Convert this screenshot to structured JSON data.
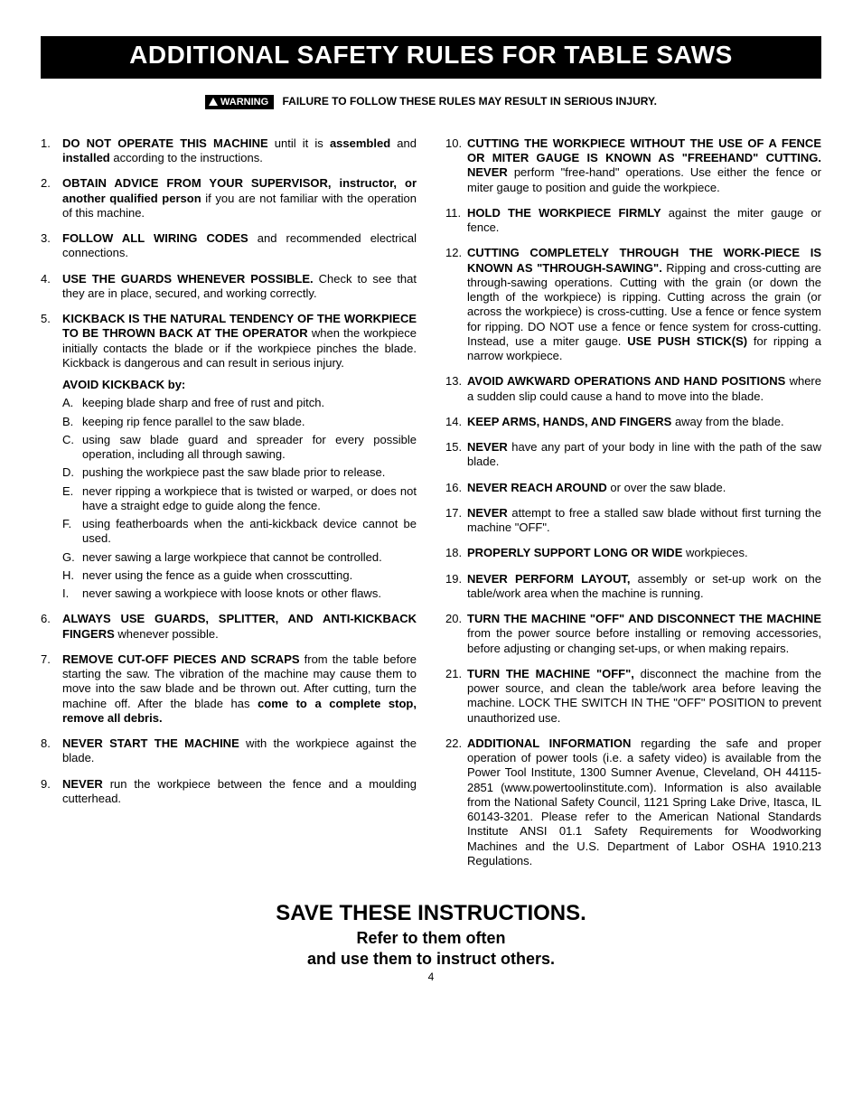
{
  "title": "ADDITIONAL SAFETY RULES FOR TABLE SAWS",
  "warning_label": "WARNING",
  "warning_text": "FAILURE TO FOLLOW THESE RULES MAY RESULT IN SERIOUS INJURY.",
  "left_rules": [
    {
      "bold": "DO NOT OPERATE THIS MACHINE",
      "rest": " until it is ",
      "bold2": "assembled",
      "rest2": " and ",
      "bold3": "installed",
      "rest3": " according to the instructions."
    },
    {
      "bold": "OBTAIN ADVICE FROM YOUR SUPERVISOR, instructor, or another qualified person",
      "rest": " if you are not familiar with the operation of this machine."
    },
    {
      "bold": "FOLLOW ALL WIRING CODES",
      "rest": " and recommended electrical connections."
    },
    {
      "bold": "USE THE GUARDS WHENEVER POSSIBLE.",
      "rest": " Check to see that they are in place, secured, and working correctly."
    },
    {
      "bold": "KICKBACK IS THE NATURAL TENDENCY OF THE WORKPIECE TO BE THROWN BACK AT THE OPERATOR",
      "rest": " when the workpiece initially contacts the blade or if the workpiece pinches the blade. Kickback is dangerous and can result in serious injury."
    },
    {
      "bold": "ALWAYS USE GUARDS, SPLITTER, AND ANTI-KICKBACK FINGERS",
      "rest": " whenever possible."
    },
    {
      "bold": "REMOVE CUT-OFF PIECES AND SCRAPS",
      "rest": " from the table before starting the saw. The vibration of the machine may cause them to move into the saw blade and be thrown out. After cutting, turn the machine off. After the blade has ",
      "bold2": "come to a complete stop, remove all debris."
    },
    {
      "bold": "NEVER START THE MACHINE",
      "rest": " with the workpiece against the blade."
    },
    {
      "bold": "NEVER",
      "rest": " run the workpiece between the fence and a moulding cutterhead."
    }
  ],
  "avoid_heading": "AVOID KICKBACK by:",
  "avoid_items": [
    "keeping blade sharp and free of rust and pitch.",
    "keeping rip fence parallel to the saw blade.",
    "using saw blade guard and spreader for every possible operation, including all through sawing.",
    "pushing the workpiece past the saw blade prior to release.",
    "never ripping a workpiece that is twisted or warped, or does not have a straight edge to guide along the fence.",
    "using featherboards when the anti-kickback device cannot be used.",
    "never sawing a large workpiece that cannot be controlled.",
    "never using the fence as a guide when crosscutting.",
    "never sawing a workpiece with loose knots or other flaws."
  ],
  "right_rules": [
    {
      "bold": "CUTTING THE WORKPIECE WITHOUT THE USE OF A FENCE OR MITER GAUGE IS KNOWN AS \"FREEHAND\" CUTTING. NEVER",
      "rest": " perform \"free-hand\" operations. Use either the fence or miter gauge to position and guide the workpiece."
    },
    {
      "bold": "HOLD THE WORKPIECE FIRMLY",
      "rest": " against the miter gauge or fence."
    },
    {
      "bold": "CUTTING COMPLETELY THROUGH THE WORK-PIECE IS KNOWN AS \"THROUGH-SAWING\".",
      "rest": " Ripping and cross-cutting are through-sawing operations. Cutting with the grain (or down the length of the workpiece) is ripping. Cutting across the grain (or across the workpiece) is cross-cutting. Use a fence or fence system for ripping. DO NOT use a fence or fence system for cross-cutting. Instead, use a miter gauge. ",
      "bold2": "USE PUSH STICK(S)",
      "rest2": " for ripping a narrow workpiece."
    },
    {
      "bold": "AVOID AWKWARD OPERATIONS AND HAND POSITIONS",
      "rest": " where a sudden slip could cause a hand to move into the blade."
    },
    {
      "bold": "KEEP ARMS, HANDS, AND FINGERS",
      "rest": " away from the blade."
    },
    {
      "bold": "NEVER",
      "rest": " have any part of your body in line with the path of the saw blade."
    },
    {
      "bold": "NEVER REACH AROUND",
      "rest": " or over the saw blade."
    },
    {
      "bold": "NEVER",
      "rest": " attempt to free a stalled saw blade without first turning the machine \"OFF\"."
    },
    {
      "bold": "PROPERLY SUPPORT LONG OR WIDE",
      "rest": " workpieces."
    },
    {
      "bold": "NEVER PERFORM LAYOUT,",
      "rest": " assembly or set-up work on the table/work area when the machine is running."
    },
    {
      "bold": "TURN THE MACHINE \"OFF\" AND DISCONNECT THE MACHINE",
      "rest": " from the power source before installing or removing accessories, before adjusting or changing set-ups, or when making repairs."
    },
    {
      "bold": "TURN THE MACHINE \"OFF\",",
      "rest": " disconnect the machine from the power source, and clean the table/work area before leaving the machine. LOCK THE SWITCH IN THE \"OFF\" POSITION to prevent unauthorized use."
    },
    {
      "bold": "ADDITIONAL INFORMATION",
      "rest": " regarding the safe and proper operation of power tools (i.e. a safety video) is available from the Power Tool Institute, 1300 Sumner Avenue, Cleveland, OH 44115-2851 (www.powertoolinstitute.com). Information is also available from the National Safety Council, 1121 Spring Lake Drive, Itasca, IL 60143-3201. Please refer to the American National Standards Institute ANSI 01.1 Safety Requirements for Woodworking Machines and the U.S. Department of Labor OSHA 1910.213 Regulations."
    }
  ],
  "footer": {
    "save": "SAVE THESE INSTRUCTIONS.",
    "refer1": "Refer to them often",
    "refer2": "and use them to instruct others."
  },
  "page_number": "4"
}
